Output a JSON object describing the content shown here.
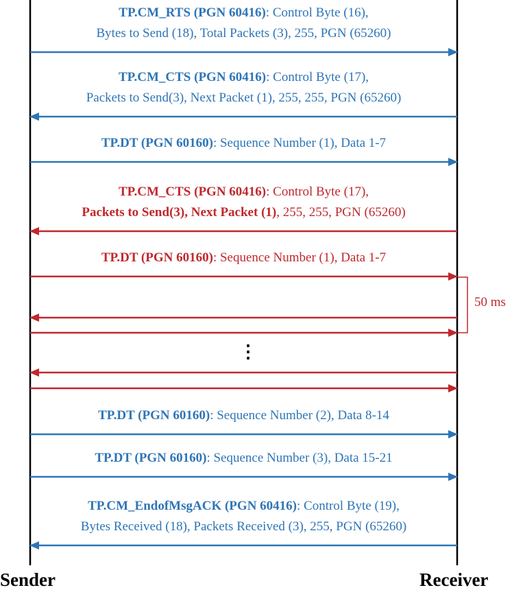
{
  "participants": {
    "sender": "Sender",
    "receiver": "Receiver"
  },
  "colors": {
    "normal": "#2e75b6",
    "highlight": "#c0282d",
    "lifeline": "#000000"
  },
  "messages": [
    {
      "style": "blue",
      "direction": "right",
      "lines": [
        [
          {
            "text": "TP.CM_RTS (PGN 60416)",
            "bold": true
          },
          {
            "text": ": Control Byte (16),",
            "bold": false
          }
        ],
        [
          {
            "text": "Bytes to Send (18), Total Packets (3), 255, PGN (65260)",
            "bold": false
          }
        ]
      ]
    },
    {
      "style": "blue",
      "direction": "left",
      "lines": [
        [
          {
            "text": "TP.CM_CTS (PGN 60416)",
            "bold": true
          },
          {
            "text": ": Control Byte (17),",
            "bold": false
          }
        ],
        [
          {
            "text": "Packets to Send(3), Next Packet (1), 255, 255, PGN (65260)",
            "bold": false
          }
        ]
      ]
    },
    {
      "style": "blue",
      "direction": "right",
      "lines": [
        [
          {
            "text": "TP.DT (PGN 60160)",
            "bold": true
          },
          {
            "text": ": Sequence Number (1), Data 1-7",
            "bold": false
          }
        ]
      ]
    },
    {
      "style": "red",
      "direction": "left",
      "lines": [
        [
          {
            "text": "TP.CM_CTS (PGN 60416)",
            "bold": true
          },
          {
            "text": ": Control Byte (17),",
            "bold": false
          }
        ],
        [
          {
            "text": "Packets to Send(3), Next Packet (1)",
            "bold": true
          },
          {
            "text": ", 255, 255, PGN (65260)",
            "bold": false
          }
        ]
      ]
    },
    {
      "style": "red",
      "direction": "right",
      "lines": [
        [
          {
            "text": "TP.DT (PGN 60160)",
            "bold": true
          },
          {
            "text": ": Sequence Number (1), Data 1-7",
            "bold": false
          }
        ]
      ]
    },
    {
      "style": "red",
      "direction": "left",
      "lines": []
    },
    {
      "style": "red",
      "direction": "right",
      "lines": []
    },
    {
      "style": "red",
      "direction": "left",
      "lines": []
    },
    {
      "style": "red",
      "direction": "right",
      "lines": []
    },
    {
      "style": "blue",
      "direction": "right",
      "lines": [
        [
          {
            "text": "TP.DT (PGN 60160)",
            "bold": true
          },
          {
            "text": ": Sequence Number (2), Data 8-14",
            "bold": false
          }
        ]
      ]
    },
    {
      "style": "blue",
      "direction": "right",
      "lines": [
        [
          {
            "text": "TP.DT (PGN 60160)",
            "bold": true
          },
          {
            "text": ": Sequence Number (3), Data 15-21",
            "bold": false
          }
        ]
      ]
    },
    {
      "style": "blue",
      "direction": "left",
      "lines": [
        [
          {
            "text": "TP.CM_EndofMsgACK (PGN 60416)",
            "bold": true
          },
          {
            "text": ": Control Byte (19),",
            "bold": false
          }
        ],
        [
          {
            "text": "Bytes Received (18), Packets Received (3), 255, PGN (65260)",
            "bold": false
          }
        ]
      ]
    }
  ],
  "interval_label": "50 ms",
  "ellipsis": "⋮"
}
